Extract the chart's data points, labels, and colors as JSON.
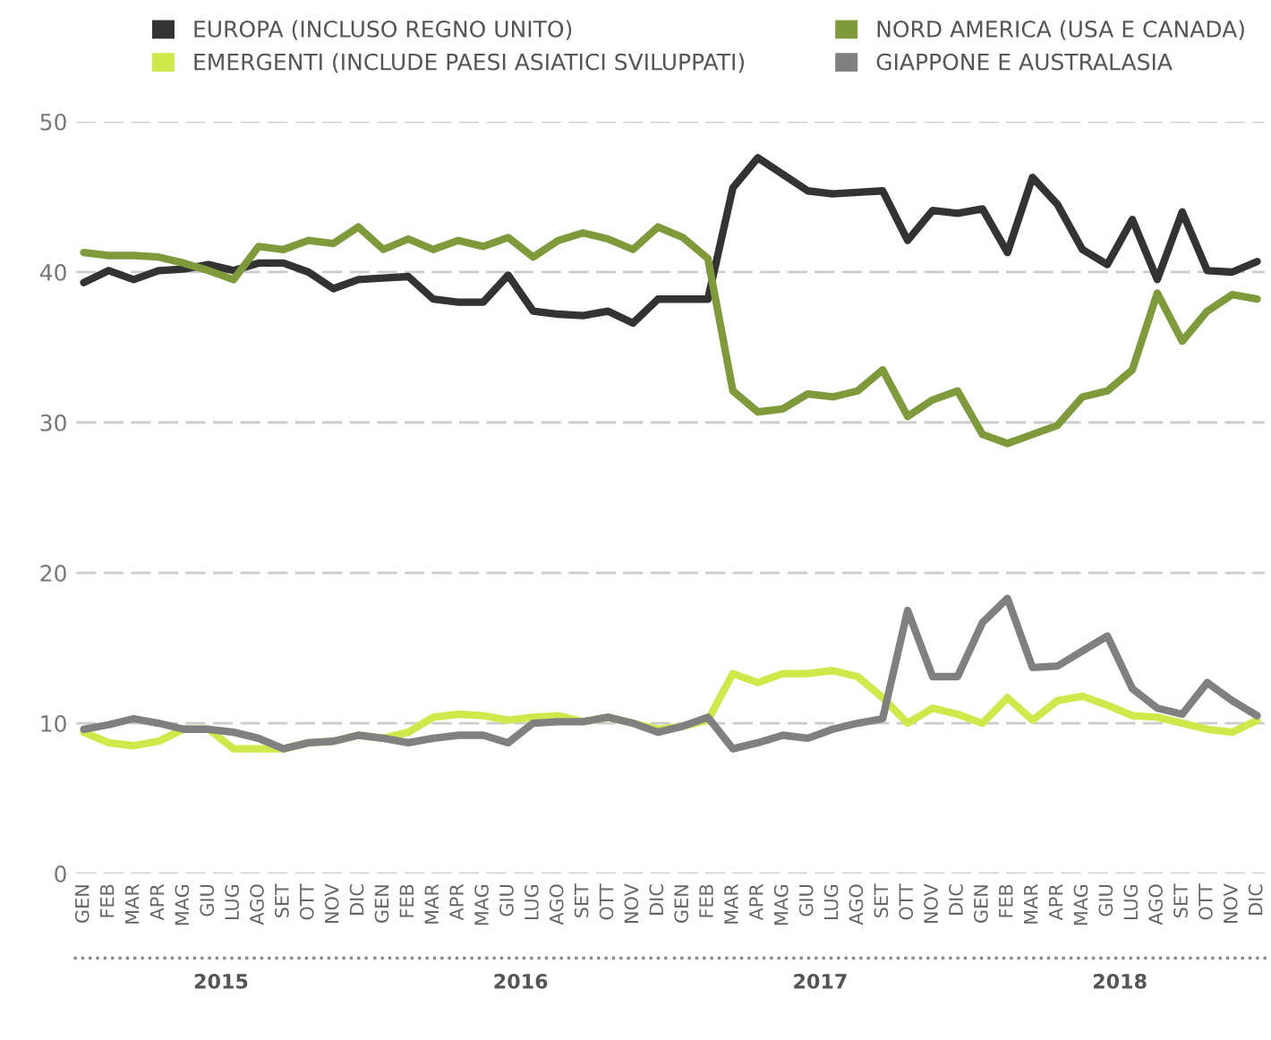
{
  "chart_data": {
    "type": "line",
    "categories": [
      "GEN",
      "FEB",
      "MAR",
      "APR",
      "MAG",
      "GIU",
      "LUG",
      "AGO",
      "SET",
      "OTT",
      "NOV",
      "DIC",
      "GEN",
      "FEB",
      "MAR",
      "APR",
      "MAG",
      "GIU",
      "LUG",
      "AGO",
      "SET",
      "OTT",
      "NOV",
      "DIC",
      "GEN",
      "FEB",
      "MAR",
      "APR",
      "MAG",
      "GIU",
      "LUG",
      "AGO",
      "SET",
      "OTT",
      "NOV",
      "DIC",
      "GEN",
      "FEB",
      "MAR",
      "APR",
      "MAG",
      "GIU",
      "LUG",
      "AGO",
      "SET",
      "OTT",
      "NOV",
      "DIC"
    ],
    "series": [
      {
        "name": "EUROPA (INCLUSO REGNO UNITO)",
        "color": "#333333",
        "values": [
          39.3,
          40.1,
          39.5,
          40.1,
          40.2,
          40.5,
          40.1,
          40.6,
          40.6,
          40.0,
          38.9,
          39.5,
          39.6,
          39.7,
          38.2,
          38.0,
          38.0,
          39.8,
          37.4,
          37.2,
          37.1,
          37.4,
          36.6,
          38.2,
          38.2,
          38.2,
          45.6,
          47.6,
          46.5,
          45.4,
          45.2,
          45.3,
          45.4,
          42.1,
          44.1,
          43.9,
          44.2,
          41.3,
          46.3,
          44.5,
          41.5,
          40.5,
          43.5,
          39.5,
          44.0,
          40.1,
          40.0,
          40.7
        ]
      },
      {
        "name": "EMERGENTI (INCLUDE PAESI ASIATICI SVILUPPATI)",
        "color": "#cfe84a",
        "values": [
          9.4,
          8.7,
          8.5,
          8.8,
          9.6,
          9.6,
          8.3,
          8.3,
          8.3,
          8.7,
          8.8,
          9.2,
          9.0,
          9.4,
          10.4,
          10.6,
          10.5,
          10.2,
          10.4,
          10.5,
          10.1,
          10.4,
          10.0,
          9.6,
          9.8,
          10.2,
          13.3,
          12.7,
          13.3,
          13.3,
          13.5,
          13.1,
          11.7,
          10.0,
          11.0,
          10.6,
          10.0,
          11.7,
          10.2,
          11.5,
          11.8,
          11.2,
          10.5,
          10.4,
          10.0,
          9.6,
          9.4,
          10.2
        ]
      },
      {
        "name": "NORD AMERICA (USA E CANADA)",
        "color": "#7f9a3a",
        "values": [
          41.3,
          41.1,
          41.1,
          41.0,
          40.6,
          40.1,
          39.5,
          41.7,
          41.5,
          42.1,
          41.9,
          43.0,
          41.5,
          42.2,
          41.5,
          42.1,
          41.7,
          42.3,
          41.0,
          42.1,
          42.6,
          42.2,
          41.5,
          43.0,
          42.3,
          40.9,
          32.1,
          30.7,
          30.9,
          31.9,
          31.7,
          32.1,
          33.5,
          30.4,
          31.5,
          32.1,
          29.2,
          28.6,
          29.2,
          29.8,
          31.7,
          32.1,
          33.5,
          38.6,
          35.4,
          37.4,
          38.5,
          38.2
        ]
      },
      {
        "name": "GIAPPONE E AUSTRALASIA",
        "color": "#808080",
        "values": [
          9.6,
          9.9,
          10.3,
          10.0,
          9.6,
          9.6,
          9.4,
          9.0,
          8.3,
          8.7,
          8.8,
          9.2,
          9.0,
          8.7,
          9.0,
          9.2,
          9.2,
          8.7,
          10.0,
          10.1,
          10.1,
          10.4,
          10.0,
          9.4,
          9.8,
          10.4,
          8.3,
          8.7,
          9.2,
          9.0,
          9.6,
          10.0,
          10.3,
          17.5,
          13.1,
          13.1,
          16.7,
          18.3,
          13.7,
          13.8,
          14.8,
          15.8,
          12.3,
          11.0,
          10.6,
          12.7,
          11.5,
          10.5
        ]
      }
    ],
    "annotations": [
      "2015",
      "2016",
      "2017",
      "2018"
    ],
    "ylim": [
      0,
      50
    ],
    "yticks": [
      0,
      10,
      20,
      30,
      40,
      50
    ],
    "grid": "y",
    "legend": "top",
    "marker": "none",
    "line_style": "solid"
  }
}
